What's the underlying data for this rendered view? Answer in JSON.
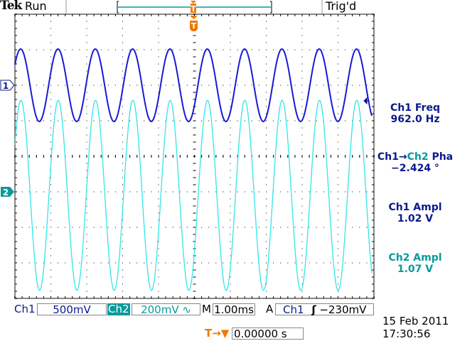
{
  "header": {
    "brand": "Tek",
    "acq_state": "Run",
    "trigger_state": "Trig'd",
    "trigger_marker": "T"
  },
  "colors": {
    "ch1": "#1a1ad6",
    "ch2": "#33e6e6",
    "ch1_text": "#0a1a8c",
    "ch2_text": "#0a9a9a",
    "trigger": "#f07800",
    "grid": "#000000"
  },
  "markers": {
    "ch1": "1",
    "ch2": "2"
  },
  "measurements": [
    {
      "label": "Ch1 Freq",
      "value": "962.0 Hz"
    },
    {
      "label_a": "Ch1",
      "arrow": "→",
      "label_b": "Ch2",
      "label_c": "Pha",
      "value": "−2.424 °"
    },
    {
      "label": "Ch1 Ampl",
      "value": "1.02 V"
    },
    {
      "label": "Ch2 Ampl",
      "value": "1.07 V"
    }
  ],
  "status_bar": {
    "ch1_label": "Ch1",
    "ch1_scale": "500mV",
    "ch2_label": "Ch2",
    "ch2_scale": "200mV ∿",
    "timebase_label": "M",
    "timebase": "1.00ms",
    "trigger_mode": "A",
    "trigger_source": "Ch1",
    "trigger_slope": "ʃ",
    "trigger_level": "−230mV",
    "trigger_pos_icon": "T→▼",
    "trigger_pos": "0.00000 s",
    "date": "15 Feb  2011",
    "time": "17:30:56"
  },
  "chart_data": {
    "type": "line",
    "grid": true,
    "divisions": {
      "x": 10,
      "y": 8
    },
    "x_units": "ms",
    "xlim": [
      -5,
      5
    ],
    "ms_per_div": 1.0,
    "series": [
      {
        "name": "Ch1",
        "volts_per_div": 0.5,
        "position_div": 2,
        "freq_hz": 962.0,
        "amplitude_pp_v": 1.02,
        "dc_offset_v": 0.0,
        "peak_time_ms": 0.357
      },
      {
        "name": "Ch2",
        "volts_per_div": 0.2,
        "position_div": -1,
        "freq_hz": 962.0,
        "amplitude_pp_v": 1.07,
        "dc_offset_v": -0.02,
        "peak_time_ms": 0.364
      }
    ]
  }
}
